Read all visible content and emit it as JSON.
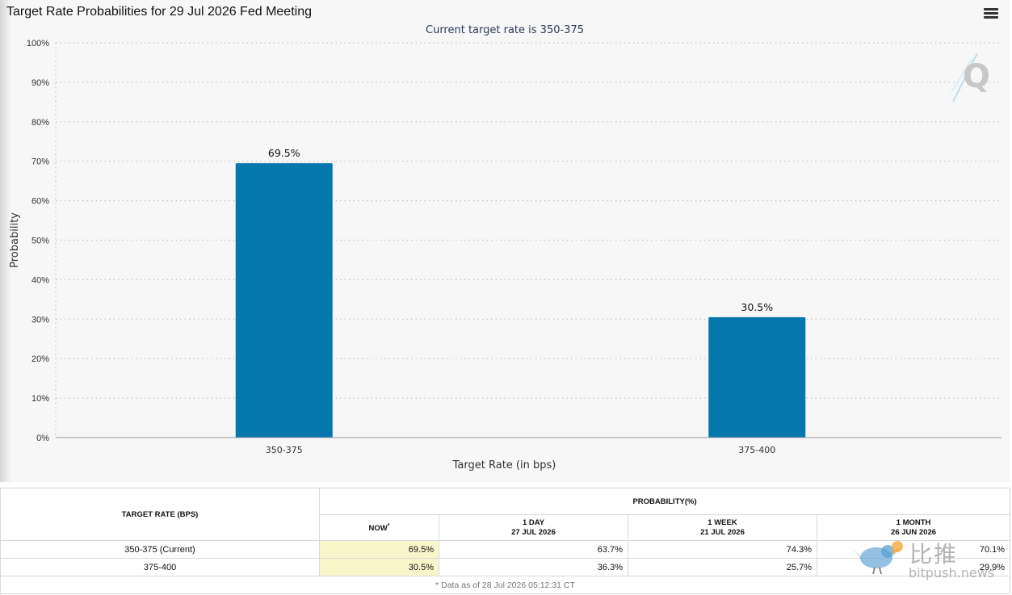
{
  "header": {
    "title": "Target Rate Probabilities for 29 Jul 2026 Fed Meeting",
    "subtitle": "Current target rate is 350-375"
  },
  "chart_data": {
    "type": "bar",
    "categories": [
      "350-375",
      "375-400"
    ],
    "values": [
      69.5,
      30.5
    ],
    "data_labels": [
      "69.5%",
      "30.5%"
    ],
    "xlabel": "Target Rate (in bps)",
    "ylabel": "Probability",
    "ylim": [
      0,
      100
    ],
    "yticks": [
      "0%",
      "10%",
      "20%",
      "30%",
      "40%",
      "50%",
      "60%",
      "70%",
      "80%",
      "90%",
      "100%"
    ],
    "grid": true,
    "bar_color": "#0677ad"
  },
  "table": {
    "col_target": "TARGET RATE (BPS)",
    "col_prob": "PROBABILITY(%)",
    "now": "NOW",
    "now_mark": "*",
    "day_label": "1 DAY",
    "day_date": "27 JUL 2026",
    "week_label": "1 WEEK",
    "week_date": "21 JUL 2026",
    "month_label": "1 MONTH",
    "month_date": "26 JUN 2026",
    "rows": [
      {
        "rate": "350-375 (Current)",
        "now": "69.5%",
        "day": "63.7%",
        "week": "74.3%",
        "month": "70.1%"
      },
      {
        "rate": "375-400",
        "now": "30.5%",
        "day": "36.3%",
        "week": "25.7%",
        "month": "29.9%"
      }
    ],
    "footnote": "* Data as of 28 Jul 2026 05:12:31 CT"
  },
  "watermark": {
    "cn": "比推",
    "en": "bitpush.news"
  },
  "icons": {
    "menu": "hamburger-menu-icon",
    "logo": "q-logo-icon",
    "watermark": "bird-logo-icon"
  }
}
